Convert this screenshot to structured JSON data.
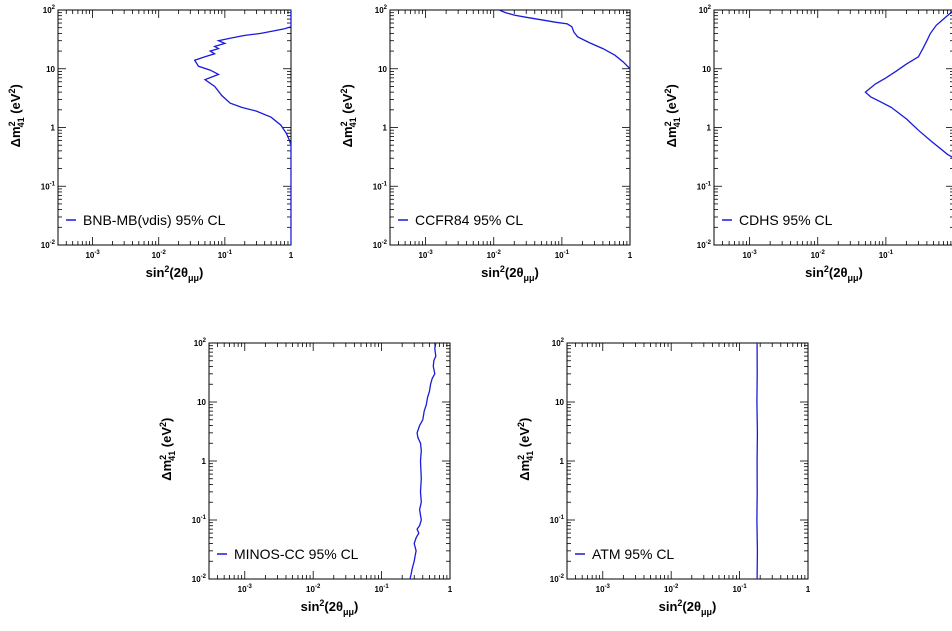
{
  "chart_data": [
    {
      "type": "line",
      "legend": "BNB-MB(νdis) 95% CL",
      "xlabel": {
        "main": "sin",
        "sup": "2",
        "mid": "(2θ",
        "sub": "μμ",
        "end": ")"
      },
      "ylabel": {
        "pre": "Δm",
        "sub": "41",
        "sup": "2",
        "post": " (eV",
        "sup2": "2",
        "end": ")"
      },
      "x_scale": "log",
      "y_scale": "log",
      "xlim": [
        0.0003,
        1
      ],
      "ylim": [
        0.01,
        100
      ],
      "x_ticks": [
        {
          "base": "10",
          "exp": "-3",
          "value": 0.001
        },
        {
          "base": "10",
          "exp": "-2",
          "value": 0.01
        },
        {
          "base": "10",
          "exp": "-1",
          "value": 0.1
        },
        {
          "base": "1",
          "exp": "",
          "value": 1
        }
      ],
      "y_ticks": [
        {
          "base": "10",
          "exp": "-2",
          "value": 0.01
        },
        {
          "base": "10",
          "exp": "-1",
          "value": 0.1
        },
        {
          "base": "1",
          "exp": "",
          "value": 1
        },
        {
          "base": "10",
          "exp": "",
          "value": 10
        },
        {
          "base": "10",
          "exp": "2",
          "value": 100
        }
      ],
      "legend_position": "bottom-left",
      "series": [
        {
          "color": "#1a1adb",
          "x": [
            1,
            1,
            1,
            0.95,
            0.85,
            0.7,
            0.5,
            0.3,
            0.18,
            0.12,
            0.09,
            0.07,
            0.05,
            0.08,
            0.06,
            0.04,
            0.035,
            0.05,
            0.07,
            0.06,
            0.08,
            0.07,
            0.1,
            0.08,
            0.12,
            0.2,
            0.35,
            0.55,
            0.8,
            1,
            1,
            1
          ],
          "y": [
            0.01,
            0.1,
            0.5,
            0.6,
            0.8,
            1.1,
            1.5,
            1.9,
            2.2,
            2.6,
            3.5,
            5,
            6.5,
            8,
            9.5,
            11,
            14,
            16,
            18,
            20,
            22,
            24,
            27,
            30,
            33,
            37,
            40,
            44,
            48,
            52,
            70,
            100
          ]
        }
      ]
    },
    {
      "type": "line",
      "legend": "CCFR84 95% CL",
      "xlabel": {
        "main": "sin",
        "sup": "2",
        "mid": "(2θ",
        "sub": "μμ",
        "end": ")"
      },
      "ylabel": {
        "pre": "Δm",
        "sub": "41",
        "sup": "2",
        "post": " (eV",
        "sup2": "2",
        "end": ")"
      },
      "x_scale": "log",
      "y_scale": "log",
      "xlim": [
        0.0003,
        1
      ],
      "ylim": [
        0.01,
        100
      ],
      "x_ticks": [
        {
          "base": "10",
          "exp": "-3",
          "value": 0.001
        },
        {
          "base": "10",
          "exp": "-2",
          "value": 0.01
        },
        {
          "base": "10",
          "exp": "-1",
          "value": 0.1
        },
        {
          "base": "1",
          "exp": "",
          "value": 1
        }
      ],
      "y_ticks": [
        {
          "base": "10",
          "exp": "-2",
          "value": 0.01
        },
        {
          "base": "10",
          "exp": "-1",
          "value": 0.1
        },
        {
          "base": "1",
          "exp": "",
          "value": 1
        },
        {
          "base": "10",
          "exp": "",
          "value": 10
        },
        {
          "base": "10",
          "exp": "2",
          "value": 100
        }
      ],
      "legend_position": "bottom-left",
      "series": [
        {
          "color": "#1a1adb",
          "x": [
            0.012,
            0.015,
            0.02,
            0.03,
            0.05,
            0.08,
            0.12,
            0.14,
            0.15,
            0.17,
            0.25,
            0.4,
            0.6,
            0.8,
            1,
            1,
            1
          ],
          "y": [
            100,
            90,
            82,
            75,
            68,
            62,
            58,
            52,
            42,
            35,
            28,
            22,
            17,
            13,
            10,
            1,
            0.01
          ]
        }
      ]
    },
    {
      "type": "line",
      "legend": "CDHS 95% CL",
      "xlabel": {
        "main": "sin",
        "sup": "2",
        "mid": "(2θ",
        "sub": "μμ",
        "end": ")"
      },
      "ylabel": {
        "pre": "Δm",
        "sub": "41",
        "sup": "2",
        "post": " (eV",
        "sup2": "2",
        "end": ")"
      },
      "x_scale": "log",
      "y_scale": "log",
      "xlim": [
        0.0003,
        1
      ],
      "ylim": [
        0.01,
        100
      ],
      "x_ticks": [
        {
          "base": "10",
          "exp": "-3",
          "value": 0.001
        },
        {
          "base": "10",
          "exp": "-2",
          "value": 0.01
        },
        {
          "base": "10",
          "exp": "-1",
          "value": 0.1
        }
      ],
      "y_ticks": [
        {
          "base": "10",
          "exp": "-2",
          "value": 0.01
        },
        {
          "base": "10",
          "exp": "-1",
          "value": 0.1
        },
        {
          "base": "1",
          "exp": "",
          "value": 1
        },
        {
          "base": "10",
          "exp": "",
          "value": 10
        },
        {
          "base": "10",
          "exp": "2",
          "value": 100
        }
      ],
      "legend_position": "bottom-left",
      "series": [
        {
          "color": "#1a1adb",
          "x": [
            1.3,
            0.8,
            0.45,
            0.3,
            0.2,
            0.12,
            0.08,
            0.06,
            0.05,
            0.07,
            0.1,
            0.14,
            0.2,
            0.3,
            0.35,
            0.4,
            0.45,
            0.55,
            0.7,
            0.85,
            1
          ],
          "y": [
            0.25,
            0.35,
            0.6,
            0.9,
            1.4,
            2.2,
            2.8,
            3.3,
            4,
            5.5,
            7,
            9,
            12,
            16,
            22,
            30,
            40,
            55,
            70,
            85,
            100
          ]
        }
      ]
    },
    {
      "type": "line",
      "legend": "MINOS-CC 95% CL",
      "xlabel": {
        "main": "sin",
        "sup": "2",
        "mid": "(2θ",
        "sub": "μμ",
        "end": ")"
      },
      "ylabel": {
        "pre": "Δm",
        "sub": "41",
        "sup": "2",
        "post": " (eV",
        "sup2": "2",
        "end": ")"
      },
      "x_scale": "log",
      "y_scale": "log",
      "xlim": [
        0.0003,
        1
      ],
      "ylim": [
        0.01,
        100
      ],
      "x_ticks": [
        {
          "base": "10",
          "exp": "-3",
          "value": 0.001
        },
        {
          "base": "10",
          "exp": "-2",
          "value": 0.01
        },
        {
          "base": "10",
          "exp": "-1",
          "value": 0.1
        },
        {
          "base": "1",
          "exp": "",
          "value": 1
        }
      ],
      "y_ticks": [
        {
          "base": "10",
          "exp": "-2",
          "value": 0.01
        },
        {
          "base": "10",
          "exp": "-1",
          "value": 0.1
        },
        {
          "base": "1",
          "exp": "",
          "value": 1
        },
        {
          "base": "10",
          "exp": "",
          "value": 10
        },
        {
          "base": "10",
          "exp": "2",
          "value": 100
        }
      ],
      "legend_position": "bottom-left",
      "series": [
        {
          "color": "#1a1adb",
          "x": [
            0.26,
            0.27,
            0.28,
            0.3,
            0.31,
            0.32,
            0.3,
            0.32,
            0.35,
            0.33,
            0.36,
            0.38,
            0.36,
            0.38,
            0.37,
            0.38,
            0.37,
            0.38,
            0.37,
            0.34,
            0.33,
            0.36,
            0.4,
            0.42,
            0.45,
            0.47,
            0.5,
            0.52,
            0.55,
            0.6,
            0.57,
            0.58,
            0.62,
            0.6,
            0.62
          ],
          "y": [
            0.01,
            0.012,
            0.015,
            0.02,
            0.025,
            0.03,
            0.04,
            0.05,
            0.06,
            0.07,
            0.08,
            0.1,
            0.15,
            0.2,
            0.3,
            0.5,
            1,
            1.5,
            2,
            2.5,
            3,
            4,
            5,
            7,
            9,
            12,
            15,
            20,
            25,
            30,
            40,
            50,
            60,
            80,
            100
          ]
        }
      ]
    },
    {
      "type": "line",
      "legend": "ATM 95% CL",
      "xlabel": {
        "main": "sin",
        "sup": "2",
        "mid": "(2θ",
        "sub": "μμ",
        "end": ")"
      },
      "ylabel": {
        "pre": "Δm",
        "sub": "41",
        "sup": "2",
        "post": " (eV",
        "sup2": "2",
        "end": ")"
      },
      "x_scale": "log",
      "y_scale": "log",
      "xlim": [
        0.0003,
        1
      ],
      "ylim": [
        0.01,
        100
      ],
      "x_ticks": [
        {
          "base": "10",
          "exp": "-3",
          "value": 0.001
        },
        {
          "base": "10",
          "exp": "-2",
          "value": 0.01
        },
        {
          "base": "10",
          "exp": "-1",
          "value": 0.1
        },
        {
          "base": "1",
          "exp": "",
          "value": 1
        }
      ],
      "y_ticks": [
        {
          "base": "10",
          "exp": "-2",
          "value": 0.01
        },
        {
          "base": "10",
          "exp": "-1",
          "value": 0.1
        },
        {
          "base": "1",
          "exp": "",
          "value": 1
        },
        {
          "base": "10",
          "exp": "",
          "value": 10
        },
        {
          "base": "10",
          "exp": "2",
          "value": 100
        }
      ],
      "legend_position": "bottom-left",
      "series": [
        {
          "color": "#1a1adb",
          "x": [
            0.18,
            0.182,
            0.179,
            0.181,
            0.18,
            0.182,
            0.179,
            0.181,
            0.18
          ],
          "y": [
            0.01,
            0.03,
            0.1,
            0.3,
            1,
            3,
            10,
            30,
            100
          ]
        }
      ]
    }
  ]
}
